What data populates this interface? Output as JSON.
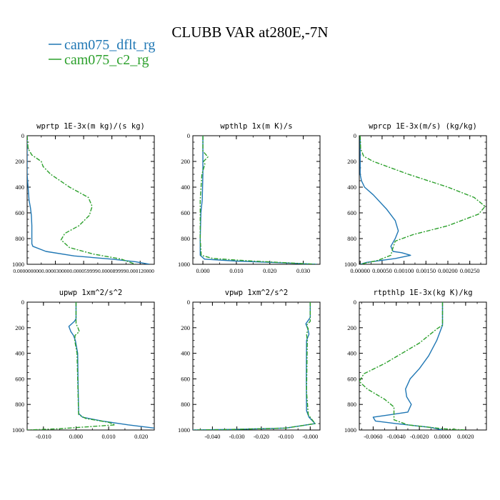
{
  "title": "CLUBB VAR at280E,-7N",
  "legend": [
    {
      "name": "cam075_dflt_rg",
      "color": "#1f77b4"
    },
    {
      "name": "cam075_c2_rg",
      "color": "#2ca02c"
    }
  ],
  "chart_data": [
    {
      "type": "line",
      "title": "wprtp  1E-3x(m kg)/(s kg)",
      "xlim": [
        0.0,
        0.000135
      ],
      "ylim": [
        1000,
        0
      ],
      "xticks": [
        0.0,
        3e-05,
        6e-05,
        9e-05,
        0.00012
      ],
      "xticklabels": [
        "0.000000000",
        "0.000030000",
        "0.000059999",
        "0.000089999",
        "0.000120000"
      ],
      "yticks": [
        0,
        200,
        400,
        600,
        800,
        1000
      ],
      "yticklabels": [
        "0",
        "200",
        "400",
        "600",
        "800",
        "1000"
      ],
      "series": [
        {
          "name": "cam075_dflt_rg",
          "color": "#1f77b4",
          "dash": false,
          "x": [
            0,
            0,
            1e-06,
            2e-06,
            3.5e-06,
            4.5e-06,
            5e-06,
            5e-06,
            5e-06,
            6e-06,
            2e-05,
            5e-05,
            9e-05,
            0.000115,
            0.00013
          ],
          "y": [
            0,
            300,
            400,
            500,
            560,
            620,
            700,
            800,
            840,
            860,
            900,
            935,
            960,
            980,
            1000
          ]
        },
        {
          "name": "cam075_c2_rg",
          "color": "#2ca02c",
          "dash": true,
          "x": [
            0,
            1e-06,
            5e-06,
            1.5e-05,
            1.7e-05,
            2.5e-05,
            4.5e-05,
            6.5e-05,
            6.9e-05,
            6.6e-05,
            5.5e-05,
            4e-05,
            3.6e-05,
            4.5e-05,
            7e-05,
            0.0001,
            0.000115
          ],
          "y": [
            0,
            100,
            150,
            200,
            240,
            300,
            400,
            480,
            550,
            620,
            700,
            760,
            810,
            870,
            920,
            960,
            1000
          ]
        }
      ]
    },
    {
      "type": "line",
      "title": "wpthlp  1x(m K)/s",
      "xlim": [
        -0.003,
        0.035
      ],
      "ylim": [
        1000,
        0
      ],
      "xticks": [
        0.0,
        0.01,
        0.02,
        0.03
      ],
      "xticklabels": [
        "0.000",
        "0.010",
        "0.020",
        "0.030"
      ],
      "yticks": [
        0,
        200,
        400,
        600,
        800,
        1000
      ],
      "yticklabels": [
        "0",
        "200",
        "400",
        "600",
        "800",
        "1000"
      ],
      "series": [
        {
          "name": "cam075_dflt_rg",
          "color": "#1f77b4",
          "dash": false,
          "x": [
            0,
            0,
            -0.0002,
            -0.0006,
            -0.0008,
            -0.0008,
            0.0005,
            0.01,
            0.025,
            0.034
          ],
          "y": [
            0,
            300,
            500,
            600,
            800,
            930,
            960,
            975,
            990,
            1000
          ]
        },
        {
          "name": "cam075_c2_rg",
          "color": "#2ca02c",
          "dash": true,
          "x": [
            0,
            0,
            0.0015,
            0.0002,
            0.0006,
            -0.0003,
            -0.0008,
            -0.0008,
            -0.0005,
            0.003,
            0.015,
            0.034
          ],
          "y": [
            0,
            120,
            165,
            200,
            220,
            300,
            500,
            800,
            930,
            955,
            975,
            1000
          ]
        }
      ]
    },
    {
      "type": "line",
      "title": "wprcp  1E-3x(m/s) (kg/kg)",
      "xlim": [
        -2e-05,
        0.00288
      ],
      "ylim": [
        1000,
        0
      ],
      "xticks": [
        0.0,
        0.0005,
        0.001,
        0.0015,
        0.002,
        0.0025
      ],
      "xticklabels": [
        "0.00000",
        "0.00050",
        "0.00100",
        "0.00150",
        "0.00200",
        "0.00250"
      ],
      "yticks": [
        0,
        200,
        400,
        600,
        800,
        1000
      ],
      "yticklabels": [
        "0",
        "200",
        "400",
        "600",
        "800",
        "1000"
      ],
      "series": [
        {
          "name": "cam075_dflt_rg",
          "color": "#1f77b4",
          "dash": false,
          "x": [
            0,
            0,
            3e-05,
            0.0001,
            0.0003,
            0.0006,
            0.0008,
            0.00087,
            0.0008,
            0.0007,
            0.00075,
            0.00095,
            0.00115,
            0.0008,
            0.00015,
            0
          ],
          "y": [
            0,
            300,
            350,
            400,
            460,
            570,
            660,
            740,
            800,
            860,
            900,
            910,
            930,
            955,
            985,
            1000
          ]
        },
        {
          "name": "cam075_c2_rg",
          "color": "#2ca02c",
          "dash": true,
          "x": [
            0,
            1e-05,
            8e-05,
            0.0003,
            0.0011,
            0.002,
            0.0026,
            0.00285,
            0.0027,
            0.002,
            0.0012,
            0.0008,
            0.00075,
            0.0007,
            0.0004,
            0
          ],
          "y": [
            0,
            100,
            160,
            200,
            300,
            400,
            480,
            550,
            610,
            700,
            770,
            820,
            870,
            930,
            970,
            1000
          ]
        }
      ]
    },
    {
      "type": "line",
      "title": "upwp  1xm^2/s^2",
      "xlim": [
        -0.015,
        0.024
      ],
      "ylim": [
        1000,
        0
      ],
      "xticks": [
        -0.01,
        0.0,
        0.01,
        0.02
      ],
      "xticklabels": [
        "-0.010",
        "0.000",
        "0.010",
        "0.020"
      ],
      "yticks": [
        0,
        200,
        400,
        600,
        800,
        1000
      ],
      "yticklabels": [
        "0",
        "200",
        "400",
        "600",
        "800",
        "1000"
      ],
      "series": [
        {
          "name": "cam075_dflt_rg",
          "color": "#1f77b4",
          "dash": false,
          "x": [
            0,
            0,
            -0.0005,
            -0.0022,
            -0.0016,
            -0.0008,
            -0.0002,
            0.0005,
            0.0006,
            0.0008,
            0.002,
            0.008,
            0.016,
            0.024
          ],
          "y": [
            0,
            130,
            150,
            190,
            230,
            260,
            300,
            400,
            600,
            870,
            900,
            930,
            960,
            985
          ]
        },
        {
          "name": "cam075_c2_rg",
          "color": "#2ca02c",
          "dash": true,
          "x": [
            0,
            0,
            0.0005,
            0.001,
            -0.0003,
            -0.0004,
            0.0003,
            0.0005,
            0.0007,
            0.0008,
            0.003,
            0.01,
            0.012,
            -0.005,
            -0.015
          ],
          "y": [
            0,
            170,
            195,
            230,
            260,
            300,
            400,
            600,
            800,
            880,
            910,
            940,
            960,
            990,
            1000
          ]
        }
      ]
    },
    {
      "type": "line",
      "title": "vpwp  1xm^2/s^2",
      "xlim": [
        -0.048,
        0.004
      ],
      "ylim": [
        1000,
        0
      ],
      "xticks": [
        -0.04,
        -0.03,
        -0.02,
        -0.01,
        0.0
      ],
      "xticklabels": [
        "-0.040",
        "-0.030",
        "-0.020",
        "-0.010",
        "-0.000"
      ],
      "yticks": [
        0,
        200,
        400,
        600,
        800,
        1000
      ],
      "yticklabels": [
        "0",
        "200",
        "400",
        "600",
        "800",
        "1000"
      ],
      "series": [
        {
          "name": "cam075_dflt_rg",
          "color": "#1f77b4",
          "dash": false,
          "x": [
            0,
            0,
            -0.0018,
            -0.001,
            -0.0005,
            -0.0015,
            -0.0016,
            -0.0015,
            -0.0005,
            0.002,
            -0.01,
            -0.03,
            -0.048
          ],
          "y": [
            0,
            120,
            170,
            210,
            250,
            300,
            600,
            850,
            900,
            950,
            985,
            995,
            1000
          ]
        },
        {
          "name": "cam075_c2_rg",
          "color": "#2ca02c",
          "dash": true,
          "x": [
            0,
            0,
            -0.0015,
            -0.0008,
            -0.0015,
            -0.0012,
            -0.0015,
            -0.0008,
            0.002,
            -0.01,
            -0.035,
            -0.048
          ],
          "y": [
            0,
            150,
            180,
            210,
            250,
            300,
            700,
            880,
            950,
            985,
            997,
            1000
          ]
        }
      ]
    },
    {
      "type": "line",
      "title": "rtpthlp  1E-3x(kg K)/kg",
      "xlim": [
        -0.0072,
        0.0038
      ],
      "ylim": [
        1000,
        0
      ],
      "xticks": [
        -0.006,
        -0.004,
        -0.002,
        0.0,
        0.002
      ],
      "xticklabels": [
        "-0.0060",
        "-0.0040",
        "-0.0020",
        "0.0000",
        "0.0020"
      ],
      "yticks": [
        0,
        200,
        400,
        600,
        800,
        1000
      ],
      "yticklabels": [
        "0",
        "200",
        "400",
        "600",
        "800",
        "1000"
      ],
      "series": [
        {
          "name": "cam075_dflt_rg",
          "color": "#1f77b4",
          "dash": false,
          "x": [
            0,
            0,
            -0.0005,
            -0.0012,
            -0.002,
            -0.0028,
            -0.0032,
            -0.0031,
            -0.0027,
            -0.003,
            -0.0045,
            -0.006,
            -0.0058,
            -0.004,
            -0.001,
            0
          ],
          "y": [
            0,
            180,
            300,
            420,
            520,
            600,
            680,
            740,
            800,
            860,
            880,
            900,
            930,
            950,
            980,
            1000
          ]
        },
        {
          "name": "cam075_c2_rg",
          "color": "#2ca02c",
          "dash": true,
          "x": [
            0,
            0,
            -0.0005,
            -0.002,
            -0.005,
            -0.0068,
            -0.0072,
            -0.0065,
            -0.005,
            -0.0042,
            -0.0042,
            -0.003,
            0,
            0.002
          ],
          "y": [
            0,
            180,
            210,
            320,
            480,
            560,
            620,
            680,
            760,
            820,
            920,
            960,
            990,
            1000
          ]
        }
      ]
    }
  ]
}
